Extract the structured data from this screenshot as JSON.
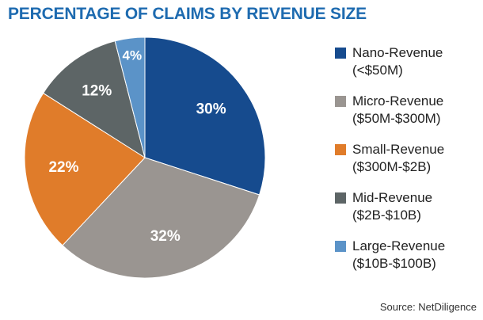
{
  "header": {
    "title": "PERCENTAGE OF CLAIMS BY REVENUE SIZE",
    "title_color": "#1e6bb0"
  },
  "chart_data": {
    "type": "pie",
    "title": "PERCENTAGE OF CLAIMS BY REVENUE SIZE",
    "slices": [
      {
        "label": "30%",
        "value": 30,
        "name": "Nano-Revenue",
        "range": "(<$50M)",
        "color": "#164b8e"
      },
      {
        "label": "32%",
        "value": 32,
        "name": "Micro-Revenue",
        "range": "($50M-$300M)",
        "color": "#9a9591"
      },
      {
        "label": "22%",
        "value": 22,
        "name": "Small-Revenue",
        "range": "($300M-$2B)",
        "color": "#e07c2a"
      },
      {
        "label": "12%",
        "value": 12,
        "name": "Mid-Revenue",
        "range": "($2B-$10B)",
        "color": "#5d6566"
      },
      {
        "label": "4%",
        "value": 4,
        "name": "Large-Revenue",
        "range": "($10B-$100B)",
        "color": "#5b93c8"
      }
    ],
    "legend_placement": "right"
  },
  "footer": {
    "source": "Source: NetDiligence"
  }
}
